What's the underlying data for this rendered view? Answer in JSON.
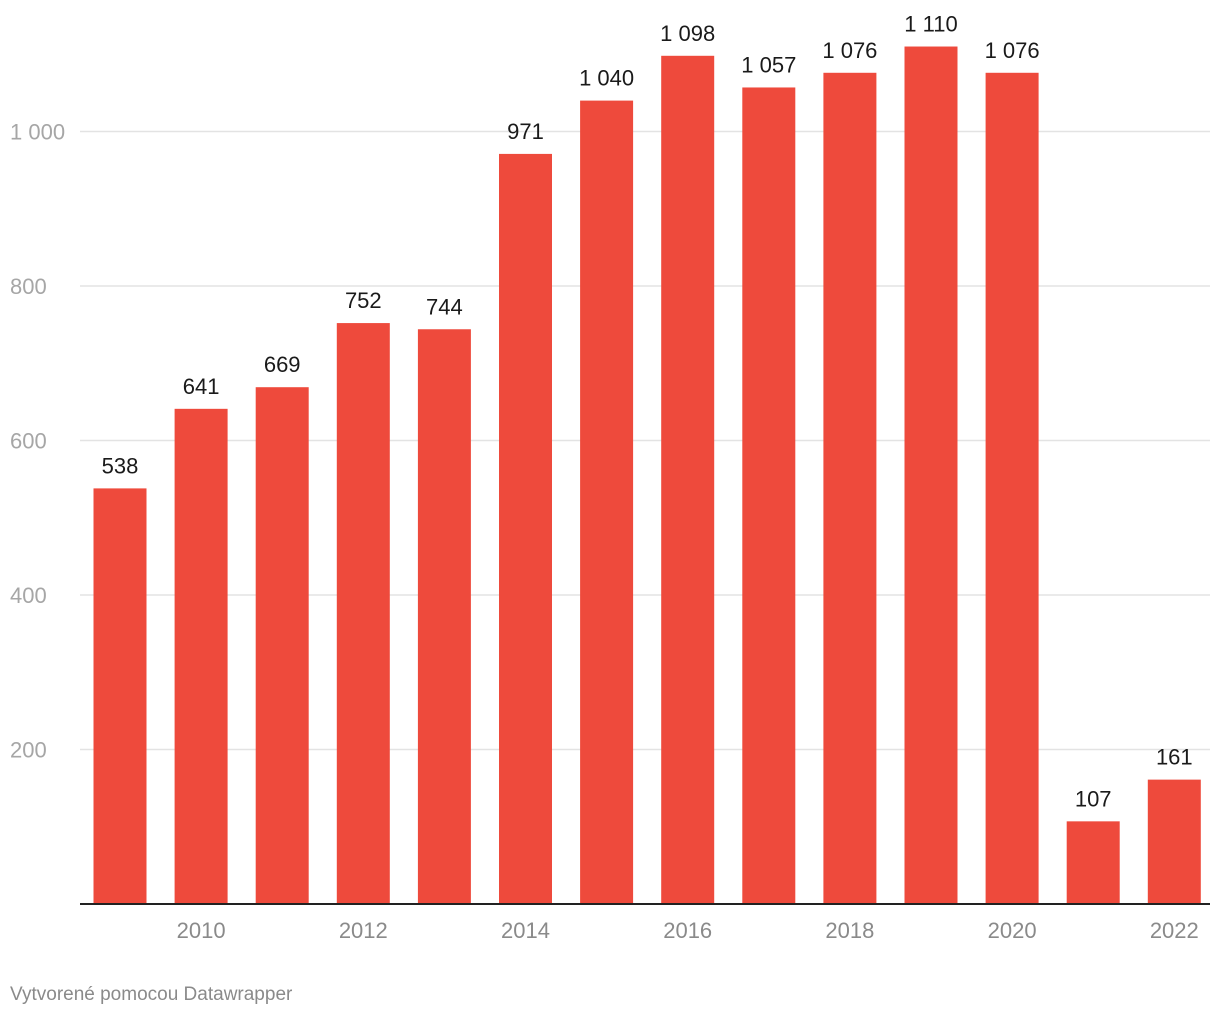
{
  "chart_data": {
    "type": "bar",
    "categories": [
      "2009",
      "2010",
      "2011",
      "2012",
      "2013",
      "2014",
      "2015",
      "2016",
      "2017",
      "2018",
      "2019",
      "2020",
      "2021",
      "2022"
    ],
    "values": [
      538,
      641,
      669,
      752,
      744,
      971,
      1040,
      1098,
      1057,
      1076,
      1110,
      1076,
      107,
      161
    ],
    "value_labels": [
      "538",
      "641",
      "669",
      "752",
      "744",
      "971",
      "1 040",
      "1 098",
      "1 057",
      "1 076",
      "1 110",
      "1 076",
      "107",
      "161"
    ],
    "x_tick_labels": [
      "2010",
      "2012",
      "2014",
      "2016",
      "2018",
      "2020",
      "2022"
    ],
    "y_ticks": [
      200,
      400,
      600,
      800,
      1000
    ],
    "y_tick_labels": [
      "200",
      "400",
      "600",
      "800",
      "1 000"
    ],
    "ylim": [
      0,
      1150
    ],
    "bar_color": "#ee4a3c",
    "title": "",
    "xlabel": "",
    "ylabel": "",
    "grid": true
  },
  "footer": {
    "credit": "Vytvorené pomocou Datawrapper"
  }
}
